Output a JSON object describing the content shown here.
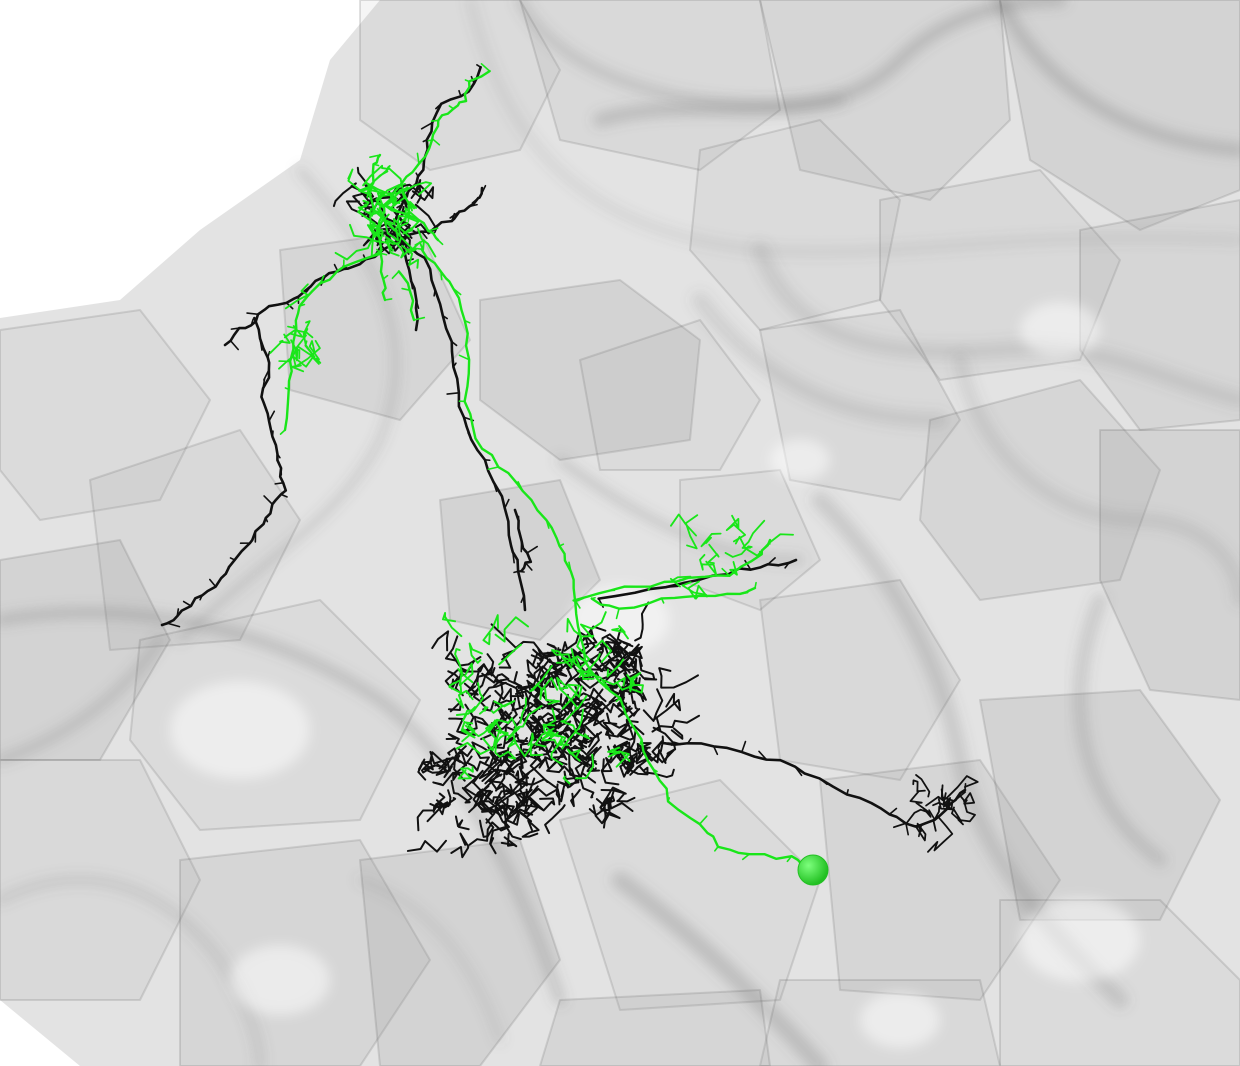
{
  "scene": {
    "background_color": "#ffffff",
    "mesh_color": "#9a9a9a",
    "mesh_edge_color": "#5a5a5a",
    "neuron_a_color": "#111111",
    "neuron_b_color": "#19e619",
    "soma_color": "#22c022",
    "soma_highlight_color": "#7dff7d"
  }
}
